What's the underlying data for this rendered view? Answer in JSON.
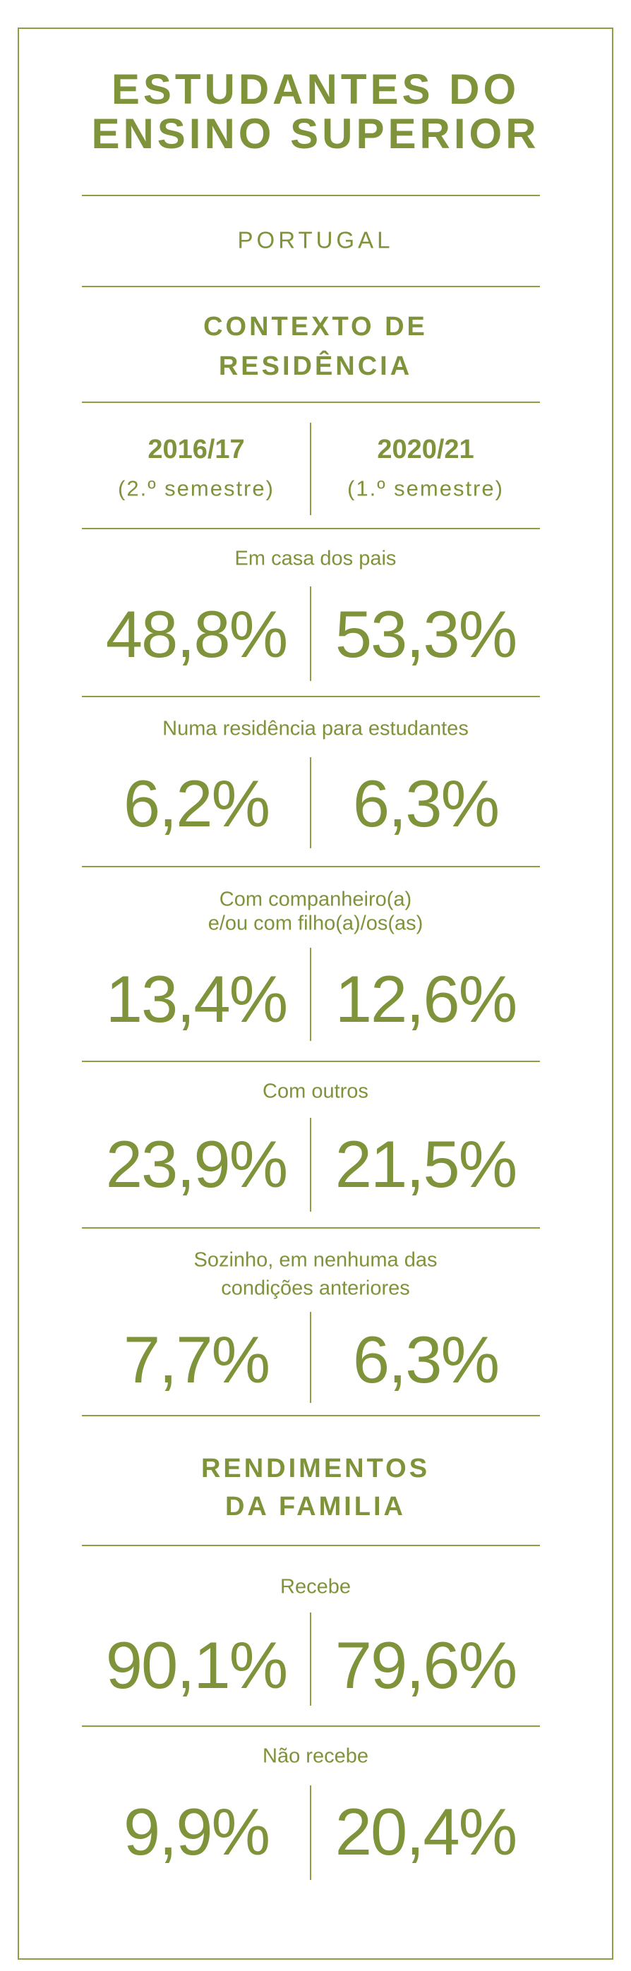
{
  "title_line1": "ESTUDANTES DO",
  "title_line2": "ENSINO SUPERIOR",
  "country": "PORTUGAL",
  "section1": {
    "line1": "CONTEXTO DE",
    "line2": "RESIDÊNCIA"
  },
  "periods": [
    {
      "year": "2016/17",
      "semester": "(2.º semestre)"
    },
    {
      "year": "2020/21",
      "semester": "(1.º semestre)"
    }
  ],
  "residence": [
    {
      "label": [
        "Em casa dos pais"
      ],
      "values": [
        "48,8%",
        "53,3%"
      ]
    },
    {
      "label": [
        "Numa residência para estudantes"
      ],
      "values": [
        "6,2%",
        "6,3%"
      ]
    },
    {
      "label": [
        "Com companheiro(a)",
        "e/ou com filho(a)/os(as)"
      ],
      "values": [
        "13,4%",
        "12,6%"
      ]
    },
    {
      "label": [
        "Com outros"
      ],
      "values": [
        "23,9%",
        "21,5%"
      ]
    },
    {
      "label": [
        "Sozinho, em nenhuma das",
        "condições anteriores"
      ],
      "values": [
        "7,7%",
        "6,3%"
      ]
    }
  ],
  "section2": {
    "line1": "RENDIMENTOS",
    "line2": "DA FAMILIA"
  },
  "income": [
    {
      "label": [
        "Recebe"
      ],
      "values": [
        "90,1%",
        "79,6%"
      ]
    },
    {
      "label": [
        "Não recebe"
      ],
      "values": [
        "9,9%",
        "20,4%"
      ]
    }
  ],
  "colors": {
    "accent": "#7e933a"
  }
}
